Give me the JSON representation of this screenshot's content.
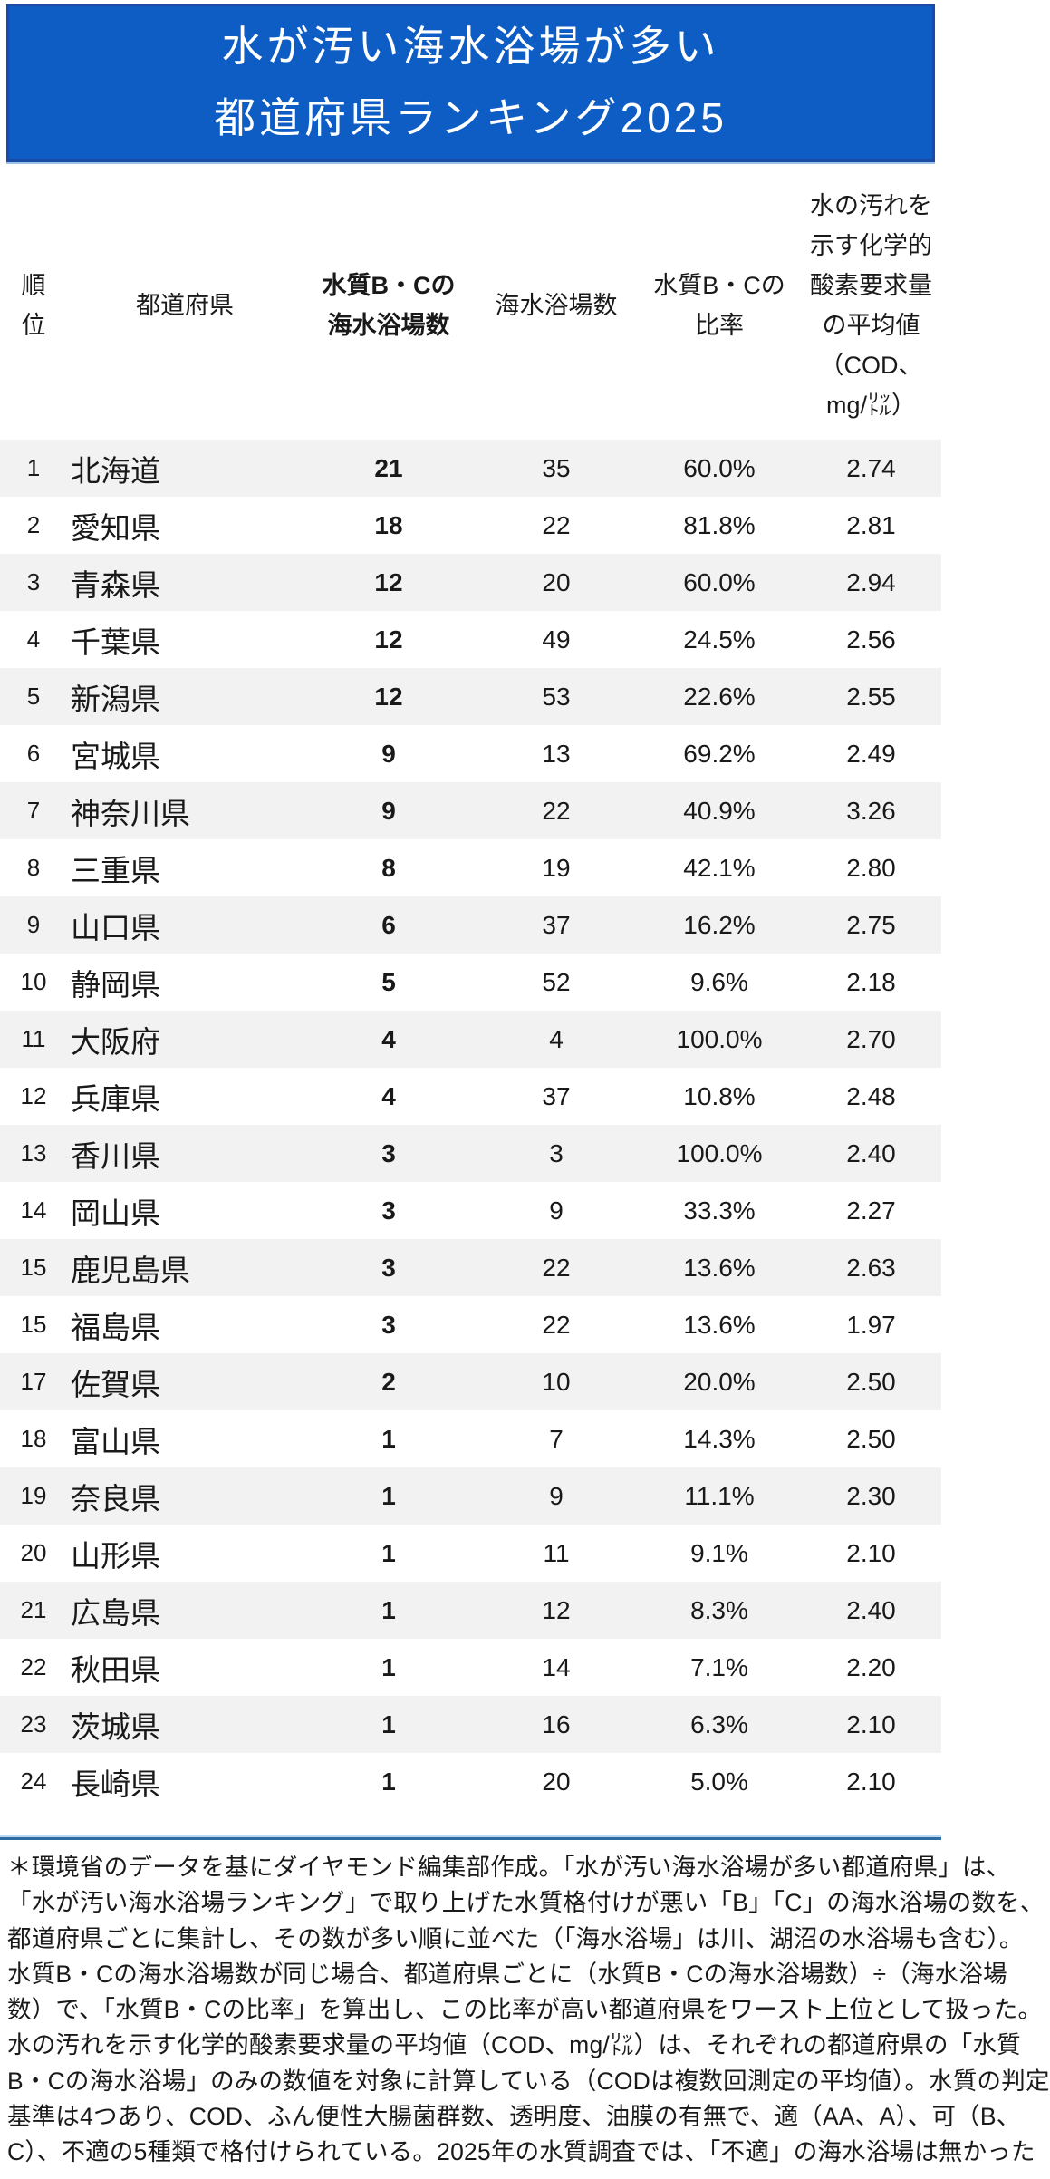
{
  "title": {
    "line1": "水が汚い海水浴場が多い",
    "line2": "都道府県ランキング2025"
  },
  "colors": {
    "title_bg": "#0e5dc4",
    "title_border": "#1b49a6",
    "underline_light_blue": "#9dc3e6",
    "rule_dark_blue": "#2e6da4",
    "row_band": "#f2f2f2",
    "text": "#191919",
    "title_text": "#ffffff"
  },
  "table": {
    "headers": [
      {
        "lines": [
          "順",
          "位"
        ]
      },
      {
        "lines": [
          "都道府県"
        ]
      },
      {
        "lines": [
          "水質B・Cの",
          "海水浴場数"
        ]
      },
      {
        "lines": [
          "海水浴場数"
        ]
      },
      {
        "lines": [
          "水質B・Cの",
          "比率"
        ]
      },
      {
        "lines": [
          "水の汚れを",
          "示す化学的",
          "酸素要求量",
          "の平均値",
          "（COD、",
          "mg/㍑）"
        ]
      }
    ]
  },
  "chart_data": {
    "type": "table",
    "title": "水が汚い海水浴場が多い都道府県ランキング2025",
    "columns": [
      "順位",
      "都道府県",
      "水質B・Cの海水浴場数",
      "海水浴場数",
      "水質B・Cの比率",
      "水の汚れを示す化学的酸素要求量の平均値（COD、mg/㍑）"
    ],
    "rows": [
      [
        "1",
        "北海道",
        "21",
        "35",
        "60.0%",
        "2.74"
      ],
      [
        "2",
        "愛知県",
        "18",
        "22",
        "81.8%",
        "2.81"
      ],
      [
        "3",
        "青森県",
        "12",
        "20",
        "60.0%",
        "2.94"
      ],
      [
        "4",
        "千葉県",
        "12",
        "49",
        "24.5%",
        "2.56"
      ],
      [
        "5",
        "新潟県",
        "12",
        "53",
        "22.6%",
        "2.55"
      ],
      [
        "6",
        "宮城県",
        "9",
        "13",
        "69.2%",
        "2.49"
      ],
      [
        "7",
        "神奈川県",
        "9",
        "22",
        "40.9%",
        "3.26"
      ],
      [
        "8",
        "三重県",
        "8",
        "19",
        "42.1%",
        "2.80"
      ],
      [
        "9",
        "山口県",
        "6",
        "37",
        "16.2%",
        "2.75"
      ],
      [
        "10",
        "静岡県",
        "5",
        "52",
        "9.6%",
        "2.18"
      ],
      [
        "11",
        "大阪府",
        "4",
        "4",
        "100.0%",
        "2.70"
      ],
      [
        "12",
        "兵庫県",
        "4",
        "37",
        "10.8%",
        "2.48"
      ],
      [
        "13",
        "香川県",
        "3",
        "3",
        "100.0%",
        "2.40"
      ],
      [
        "14",
        "岡山県",
        "3",
        "9",
        "33.3%",
        "2.27"
      ],
      [
        "15",
        "鹿児島県",
        "3",
        "22",
        "13.6%",
        "2.63"
      ],
      [
        "15",
        "福島県",
        "3",
        "22",
        "13.6%",
        "1.97"
      ],
      [
        "17",
        "佐賀県",
        "2",
        "10",
        "20.0%",
        "2.50"
      ],
      [
        "18",
        "富山県",
        "1",
        "7",
        "14.3%",
        "2.50"
      ],
      [
        "19",
        "奈良県",
        "1",
        "9",
        "11.1%",
        "2.30"
      ],
      [
        "20",
        "山形県",
        "1",
        "11",
        "9.1%",
        "2.10"
      ],
      [
        "21",
        "広島県",
        "1",
        "12",
        "8.3%",
        "2.40"
      ],
      [
        "22",
        "秋田県",
        "1",
        "14",
        "7.1%",
        "2.20"
      ],
      [
        "23",
        "茨城県",
        "1",
        "16",
        "6.3%",
        "2.10"
      ],
      [
        "24",
        "長崎県",
        "1",
        "20",
        "5.0%",
        "2.10"
      ]
    ]
  },
  "footnote": {
    "lines": [
      "＊環境省のデータを基にダイヤモンド編集部作成。「水が汚い海水浴場が多い都道府県」は、",
      "「水が汚い海水浴場ランキング」で取り上げた水質格付けが悪い「B」「C」の海水浴場の数を、",
      "都道府県ごとに集計し、その数が多い順に並べた（「海水浴場」は川、湖沼の水浴場も含む）。",
      "水質B・Cの海水浴場数が同じ場合、都道府県ごとに（水質B・Cの海水浴場数）÷（海水浴場",
      "数）で、「水質B・Cの比率」を算出し、この比率が高い都道府県をワースト上位として扱った。",
      "水の汚れを示す化学的酸素要求量の平均値（COD、mg/㍑）は、それぞれの都道府県の「水質",
      "B・Cの海水浴場」のみの数値を対象に計算している（CODは複数回測定の平均値）。水質の判定",
      "基準は4つあり、COD、ふん便性大腸菌群数、透明度、油膜の有無で、適（AA、A）、可（B、",
      "C）、不適の5種類で格付けられている。2025年の水質調査では、「不適」の海水浴場は無かった"
    ]
  }
}
